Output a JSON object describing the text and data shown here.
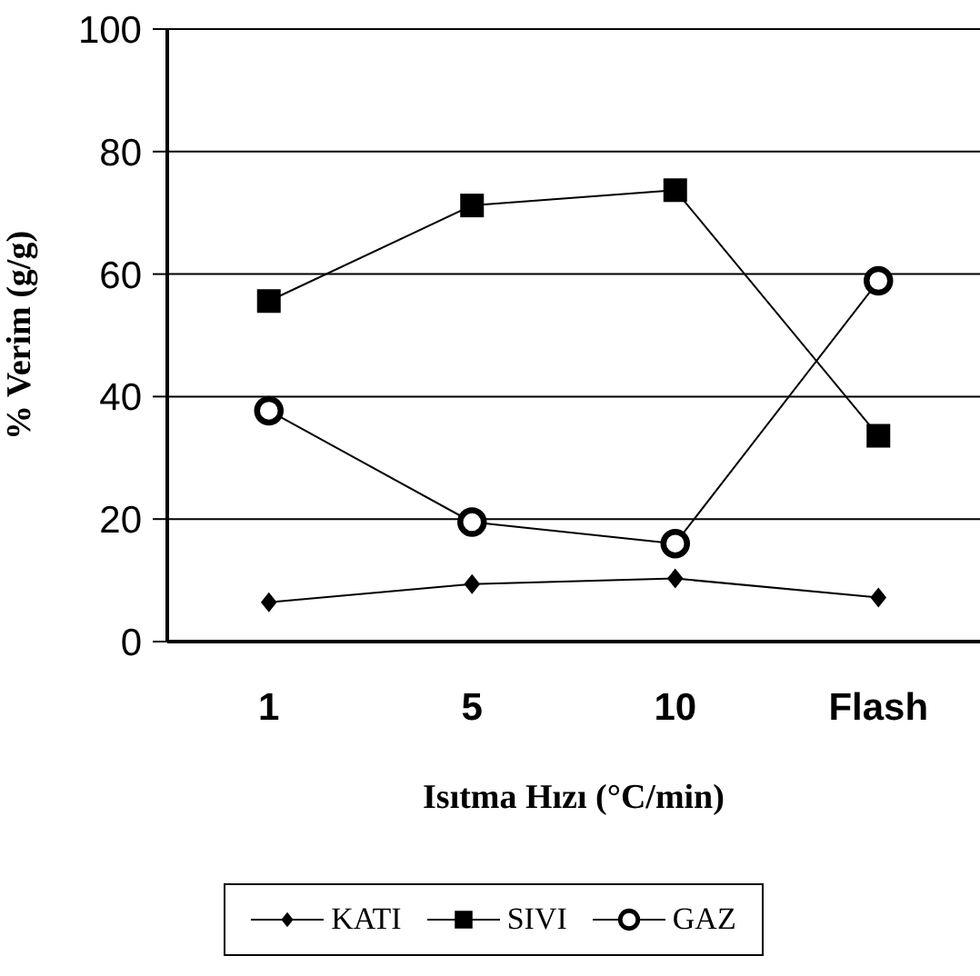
{
  "chart_data": {
    "type": "line",
    "xlabel": "Isıtma Hızı (°C/min)",
    "ylabel": "% Verim (g/g)",
    "categories": [
      "1",
      "5",
      "10",
      "Flash"
    ],
    "series": [
      {
        "name": "KATI",
        "color": "#000000",
        "marker": "diamond",
        "values": [
          6.4,
          9.4,
          10.3,
          7.2
        ]
      },
      {
        "name": "SIVI",
        "color": "#000000",
        "marker": "square",
        "values": [
          55.6,
          71.2,
          73.7,
          33.6
        ]
      },
      {
        "name": "GAZ",
        "color": "#000000",
        "marker": "circle",
        "values": [
          37.7,
          19.5,
          16.0,
          58.9
        ]
      }
    ],
    "ylim": [
      0,
      100
    ],
    "yticks": [
      0,
      20,
      40,
      60,
      80,
      100
    ],
    "grid": "y",
    "legend": "bottom"
  }
}
